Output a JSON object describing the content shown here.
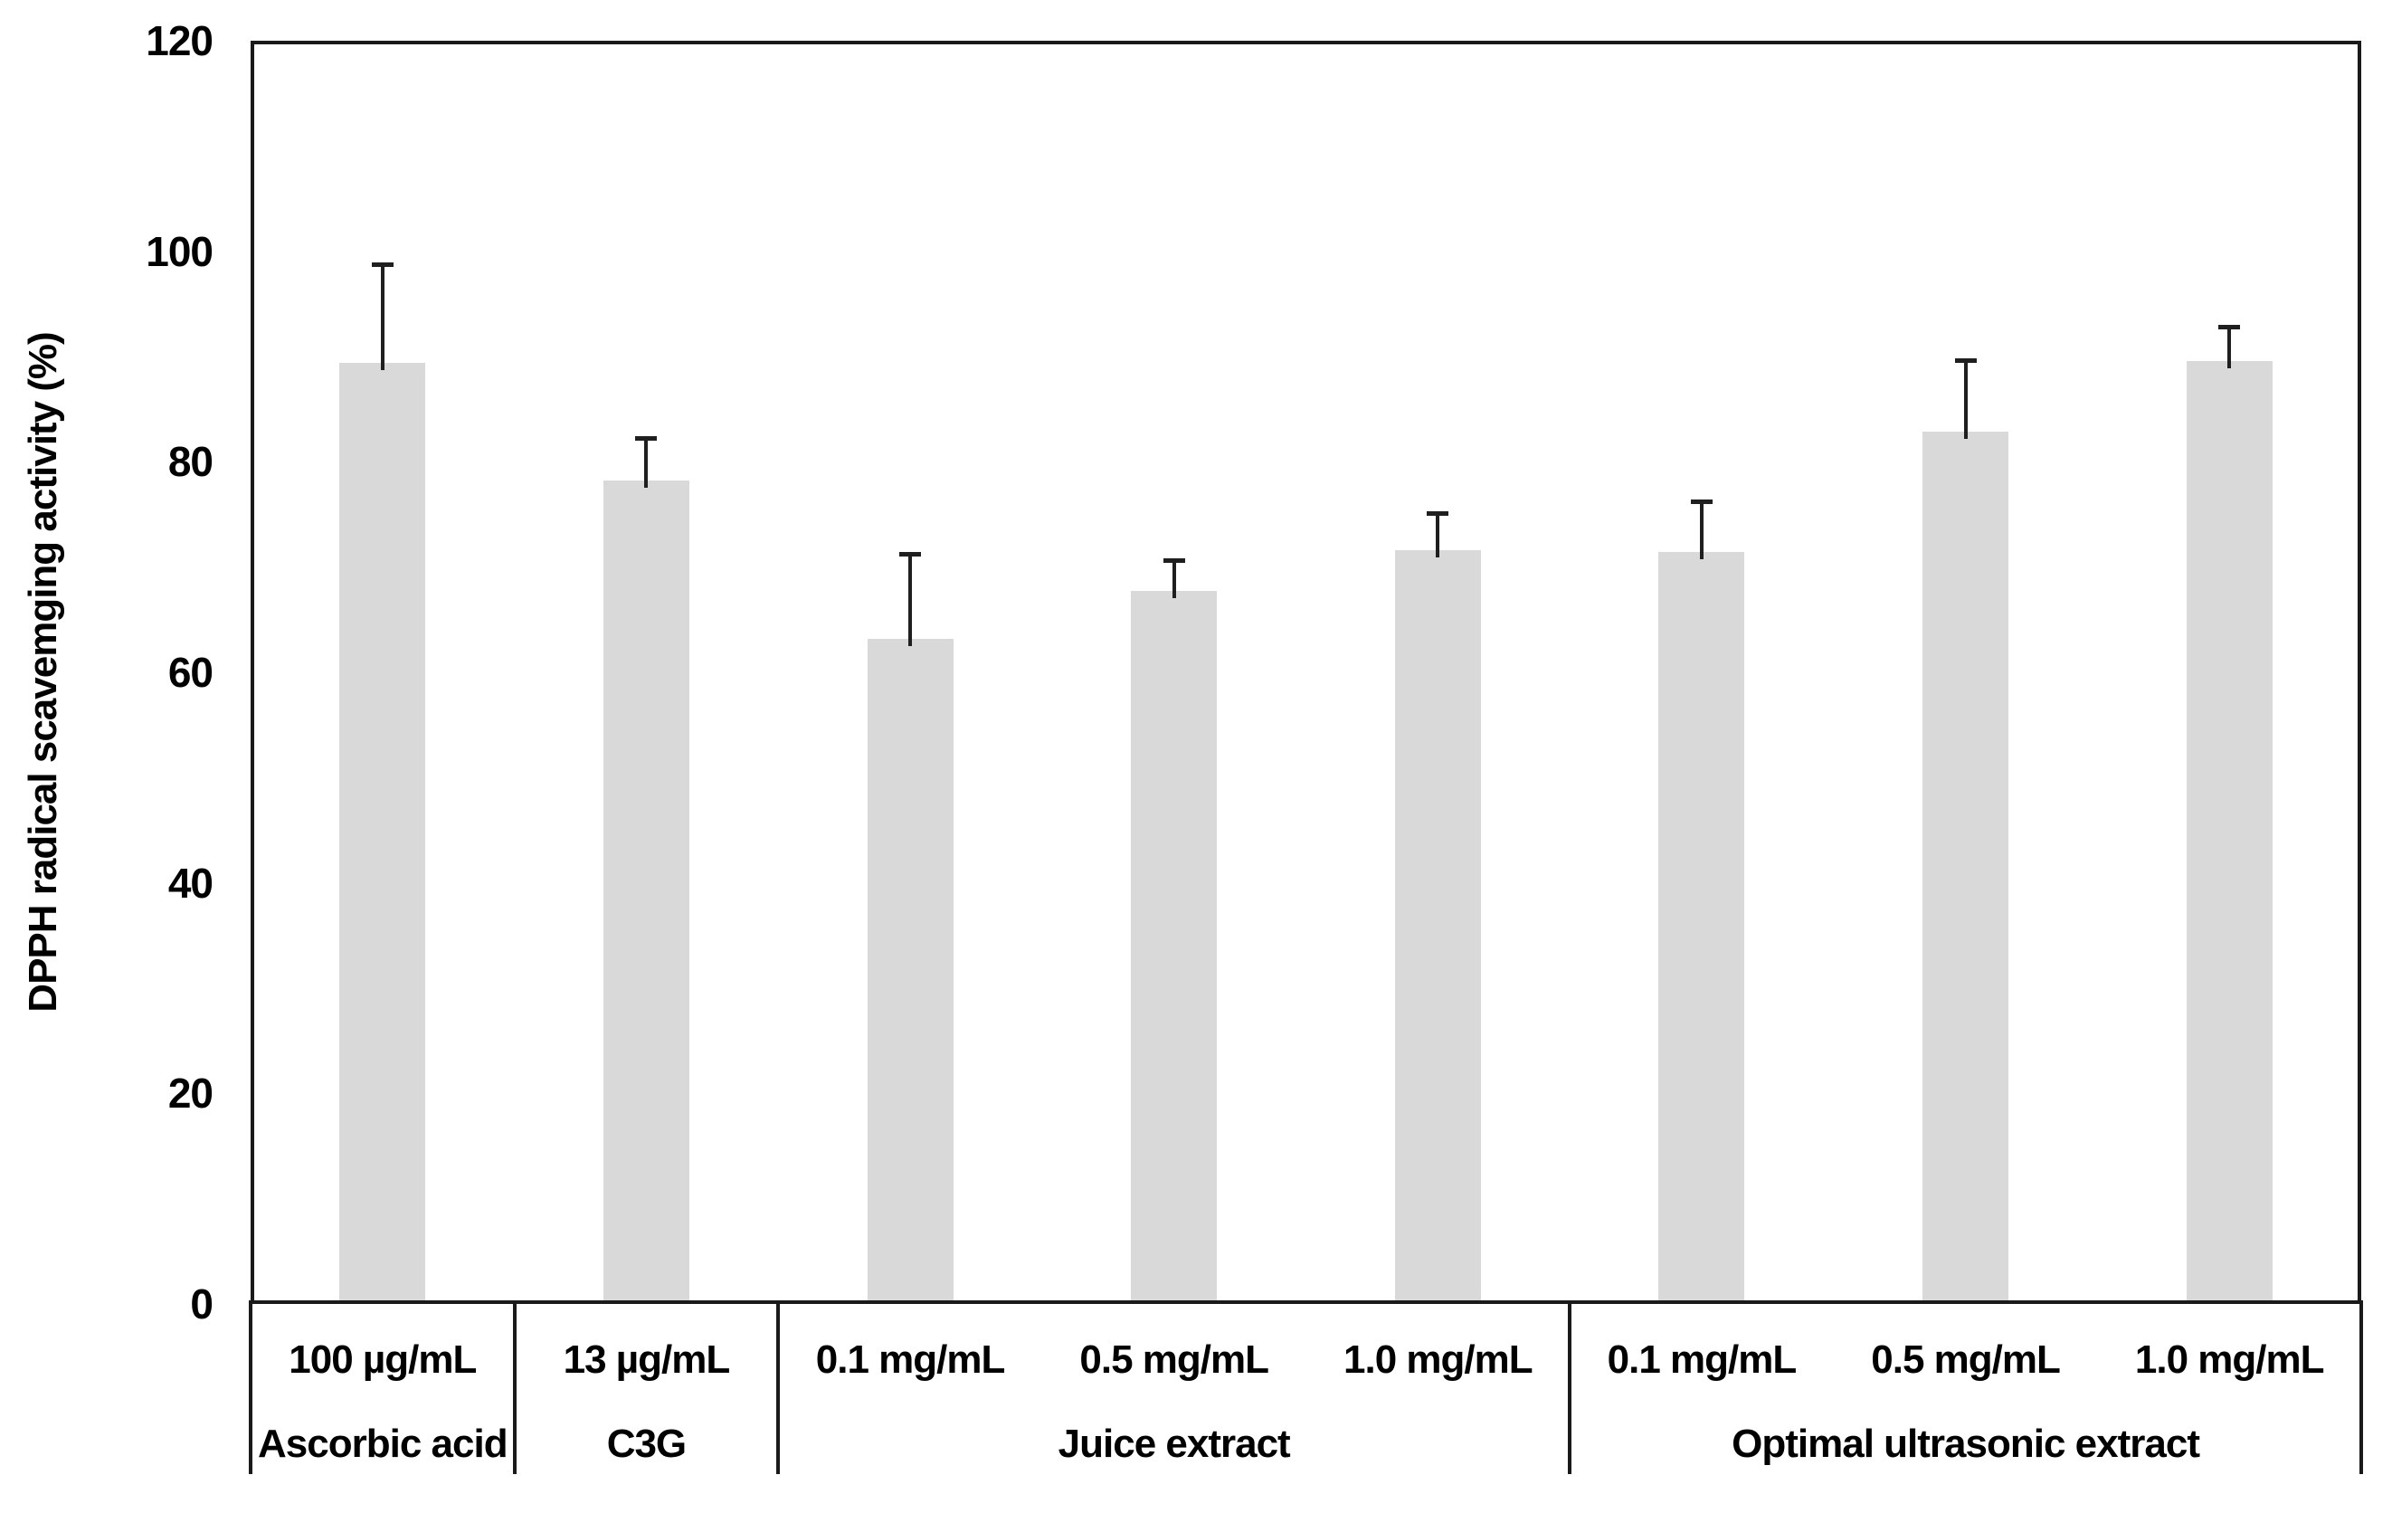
{
  "chart_data": {
    "type": "bar",
    "title": "",
    "ylabel": "DPPH radical scavemging activity (%)",
    "xlabel": "",
    "ylim": [
      0,
      120
    ],
    "yticks": [
      0,
      20,
      40,
      60,
      80,
      100,
      120
    ],
    "grid": false,
    "legend": false,
    "bar_color": "#d9d9d9",
    "error_bar_color": "#1f1f1f",
    "axis_color": "#1a1a1a",
    "error_bars_direction": "up-only",
    "groups": [
      {
        "label": "Ascorbic acid",
        "bars": [
          {
            "concentration": "100 µg/mL",
            "value": 89.4,
            "error": 9.2
          }
        ]
      },
      {
        "label": "C3G",
        "bars": [
          {
            "concentration": "13 µg/mL",
            "value": 78.2,
            "error": 3.9
          }
        ]
      },
      {
        "label": "Juice extract",
        "bars": [
          {
            "concentration": "0.1 mg/mL",
            "value": 63.2,
            "error": 7.9
          },
          {
            "concentration": "0.5 mg/mL",
            "value": 67.7,
            "error": 2.8
          },
          {
            "concentration": "1.0 mg/mL",
            "value": 71.6,
            "error": 3.4
          }
        ]
      },
      {
        "label": "Optimal ultrasonic extract",
        "bars": [
          {
            "concentration": "0.1 mg/mL",
            "value": 71.4,
            "error": 4.7
          },
          {
            "concentration": "0.5 mg/mL",
            "value": 82.9,
            "error": 6.6
          },
          {
            "concentration": "1.0 mg/mL",
            "value": 89.6,
            "error": 3.1
          }
        ]
      }
    ]
  }
}
